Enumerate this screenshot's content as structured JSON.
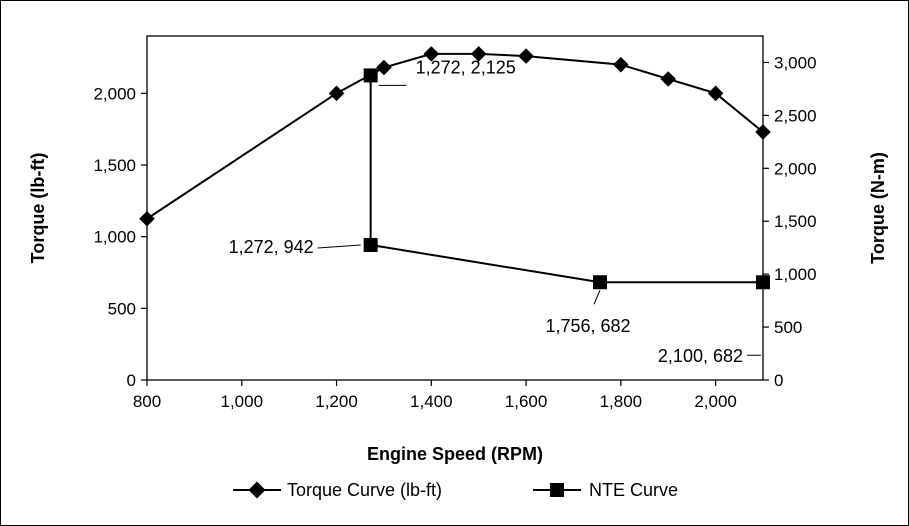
{
  "chart_data": {
    "type": "line",
    "xlabel": "Engine Speed (RPM)",
    "ylabel": "Torque (lb-ft)",
    "y2label": "Torque (N-m)",
    "xlim": [
      800,
      2100
    ],
    "ylim": [
      0,
      2400
    ],
    "y2lim": [
      0,
      3250
    ],
    "x_ticks": [
      800,
      1000,
      1200,
      1400,
      1600,
      1800,
      2000
    ],
    "x_tick_labels": [
      "800",
      "1,000",
      "1,200",
      "1,400",
      "1,600",
      "1,800",
      "2,000"
    ],
    "y_ticks": [
      0,
      500,
      1000,
      1500,
      2000
    ],
    "y_tick_labels": [
      "0",
      "500",
      "1,000",
      "1,500",
      "2,000"
    ],
    "y2_ticks": [
      0,
      500,
      1000,
      1500,
      2000,
      2500,
      3000
    ],
    "y2_tick_labels": [
      "0",
      "500",
      "1,000",
      "1,500",
      "2,000",
      "2,500",
      "3,000"
    ],
    "grid": false,
    "legend_position": "bottom",
    "series": [
      {
        "name": "Torque Curve (lb-ft)",
        "marker": "diamond",
        "color": "#000000",
        "x": [
          800,
          1200,
          1300,
          1400,
          1500,
          1600,
          1800,
          1900,
          2000,
          2100
        ],
        "y": [
          1125,
          2000,
          2180,
          2275,
          2275,
          2260,
          2200,
          2100,
          2000,
          1730
        ]
      },
      {
        "name": "NTE Curve",
        "marker": "square",
        "color": "#000000",
        "x": [
          1272,
          1272,
          1756,
          2100
        ],
        "y": [
          2125,
          942,
          682,
          682
        ]
      }
    ],
    "annotations": [
      {
        "text": "1,272, 2,125",
        "x": 1272,
        "y": 2125
      },
      {
        "text": "1,272, 942",
        "x": 1272,
        "y": 942
      },
      {
        "text": "1,756, 682",
        "x": 1756,
        "y": 682
      },
      {
        "text": "2,100, 682",
        "x": 2100,
        "y": 682
      }
    ]
  }
}
